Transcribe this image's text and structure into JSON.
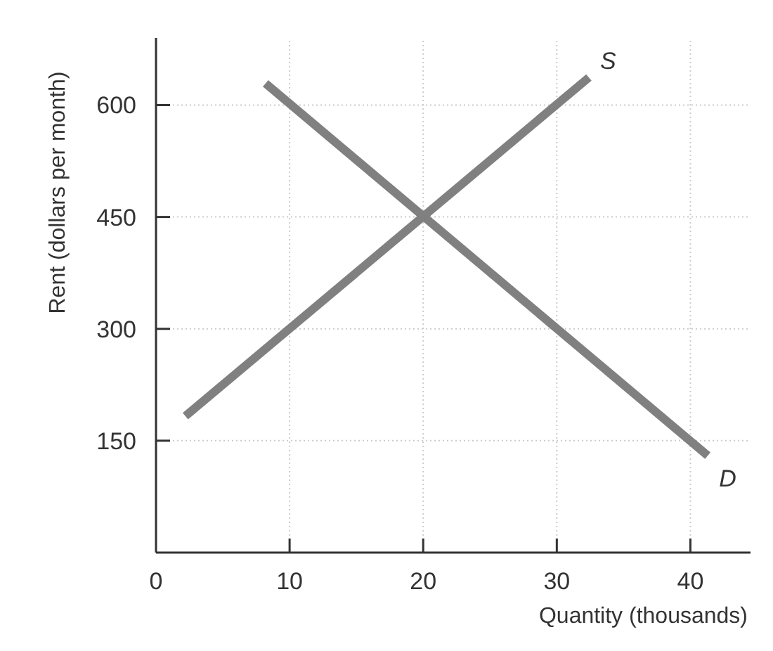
{
  "chart_data": {
    "type": "line",
    "xlabel": "Quantity (thousands)",
    "ylabel": "Rent (dollars per month)",
    "xlim": [
      0,
      44.5
    ],
    "ylim": [
      0,
      690
    ],
    "xticks": [
      0,
      10,
      20,
      30,
      40
    ],
    "yticks": [
      150,
      300,
      450,
      600
    ],
    "grid": true,
    "marker": "none",
    "line_style": "solid",
    "series": [
      {
        "name": "S",
        "color": "#808080",
        "x": [
          2.2,
          32.4
        ],
        "values": [
          183,
          637
        ]
      },
      {
        "name": "D",
        "color": "#808080",
        "x": [
          8.2,
          41.3
        ],
        "values": [
          629,
          130
        ]
      }
    ]
  }
}
